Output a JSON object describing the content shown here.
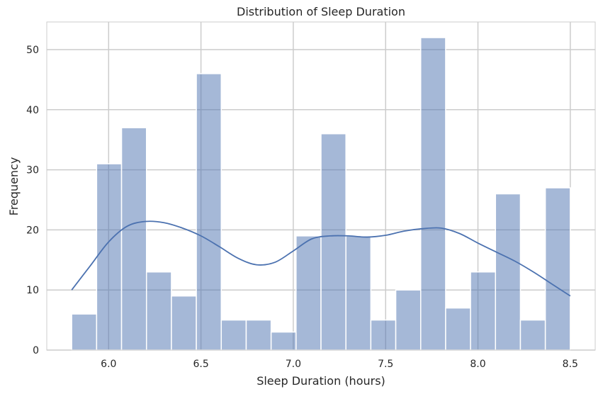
{
  "chart_data": {
    "type": "bar",
    "title": "Distribution of Sleep Duration",
    "xlabel": "Sleep Duration (hours)",
    "ylabel": "Frequency",
    "xlim": [
      5.665,
      8.635
    ],
    "ylim": [
      0,
      54.6
    ],
    "xticks": [
      6.0,
      6.5,
      7.0,
      7.5,
      8.0,
      8.5
    ],
    "xtick_labels": [
      "6.0",
      "6.5",
      "7.0",
      "7.5",
      "8.0",
      "8.5"
    ],
    "yticks": [
      0,
      10,
      20,
      30,
      40,
      50
    ],
    "ytick_labels": [
      "0",
      "10",
      "20",
      "30",
      "40",
      "50"
    ],
    "grid": true,
    "bin_edges": [
      5.8,
      5.935,
      6.07,
      6.205,
      6.34,
      6.475,
      6.61,
      6.745,
      6.88,
      7.015,
      7.15,
      7.285,
      7.42,
      7.555,
      7.69,
      7.825,
      7.96,
      8.095,
      8.23,
      8.365,
      8.5
    ],
    "values": [
      6,
      31,
      37,
      13,
      9,
      46,
      5,
      5,
      3,
      19,
      36,
      19,
      5,
      10,
      52,
      7,
      13,
      26,
      5,
      27
    ],
    "kde": {
      "x": [
        5.8,
        5.9,
        6.0,
        6.1,
        6.2,
        6.3,
        6.4,
        6.5,
        6.6,
        6.7,
        6.8,
        6.9,
        7.0,
        7.1,
        7.2,
        7.3,
        7.4,
        7.5,
        7.6,
        7.7,
        7.8,
        7.9,
        8.0,
        8.1,
        8.2,
        8.3,
        8.4,
        8.5
      ],
      "y": [
        10.0,
        14.0,
        18.0,
        20.6,
        21.4,
        21.2,
        20.3,
        19.0,
        17.2,
        15.3,
        14.2,
        14.6,
        16.5,
        18.5,
        19.0,
        19.0,
        18.8,
        19.1,
        19.8,
        20.2,
        20.3,
        19.4,
        17.8,
        16.3,
        14.8,
        13.0,
        11.0,
        9.0
      ]
    },
    "colors": {
      "bar": "#4c72b0",
      "bar_opacity": 0.5,
      "kde": "#4c72b0",
      "grid": "#cccccc",
      "frame": "#cccccc"
    }
  }
}
